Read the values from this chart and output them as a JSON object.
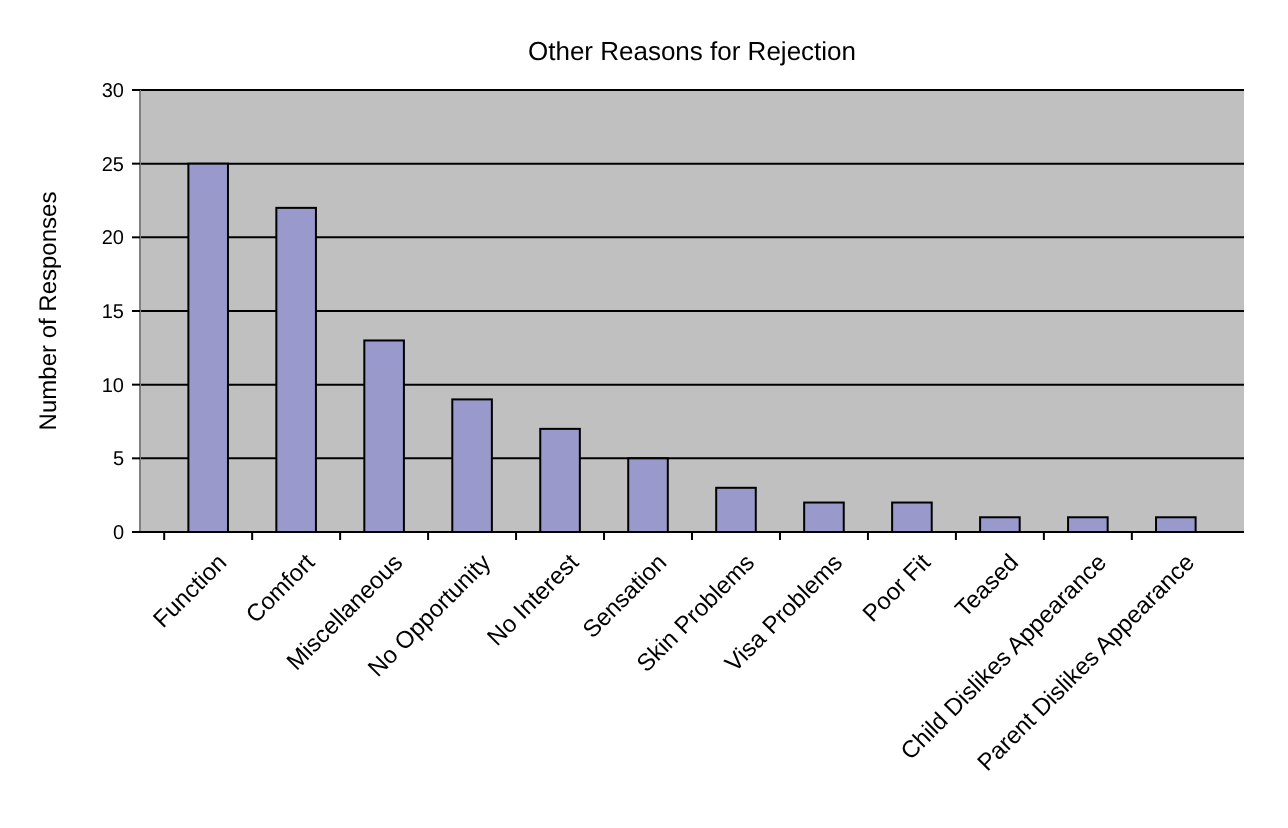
{
  "chart_data": {
    "type": "bar",
    "title": "Other Reasons for Rejection",
    "ylabel": "Number of Responses",
    "categories": [
      "Function",
      "Comfort",
      "Miscellaneous",
      "No Opportunity",
      "No Interest",
      "Sensation",
      "Skin Problems",
      "Visa Problems",
      "Poor Fit",
      "Teased",
      "Child Dislikes Appearance",
      "Parent Dislikes Appearance"
    ],
    "values": [
      25,
      22,
      13,
      9,
      7,
      5,
      3,
      2,
      2,
      1,
      1,
      1
    ],
    "color": "#9999cc",
    "ylim": [
      0,
      30
    ],
    "yticks": [
      0,
      5,
      10,
      15,
      20,
      25,
      30
    ],
    "grid": "y"
  }
}
